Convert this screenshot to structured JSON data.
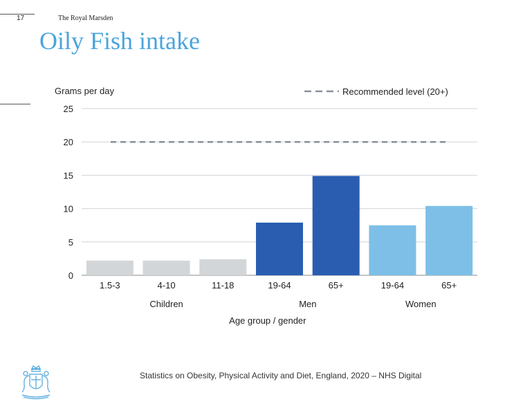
{
  "header": {
    "page_number": "17",
    "organization": "The Royal Marsden",
    "title": "Oily Fish intake"
  },
  "footer": {
    "source": "Statistics on Obesity, Physical Activity and Diet, England, 2020 – NHS Digital",
    "logo": "royal-marsden-crest"
  },
  "colors": {
    "title": "#4aa5dc",
    "children": "#d3d6d8",
    "men": "#2a5db0",
    "women": "#7dbfe6",
    "reference": "#8a9097",
    "grid": "#cfd3d6"
  },
  "chart_data": {
    "type": "bar",
    "ylabel": "Grams per day",
    "xlabel": "Age group / gender",
    "ylim": [
      0,
      25
    ],
    "yticks": [
      0,
      5,
      10,
      15,
      20,
      25
    ],
    "grid": true,
    "categories": [
      "1.5-3",
      "4-10",
      "11-18",
      "19-64",
      "65+",
      "19-64",
      "65+"
    ],
    "groups": [
      {
        "name": "Children",
        "count": 3,
        "color": "#d3d6d8"
      },
      {
        "name": "Men",
        "count": 2,
        "color": "#2a5db0"
      },
      {
        "name": "Women",
        "count": 2,
        "color": "#7dbfe6"
      }
    ],
    "values": [
      2.2,
      2.2,
      2.4,
      7.9,
      14.9,
      7.5,
      10.4
    ],
    "reference_line": {
      "label": "Recommended level (20+)",
      "value": 20,
      "style": "dashed"
    },
    "legend_position": "top-right"
  }
}
